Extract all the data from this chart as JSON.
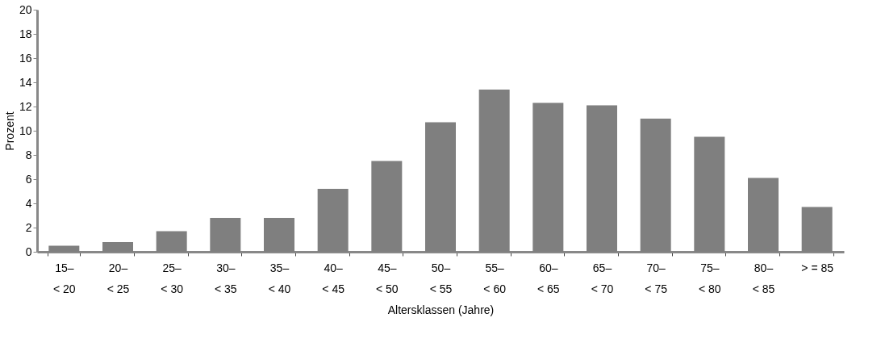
{
  "chart_data": {
    "type": "bar",
    "xlabel": "Altersklassen (Jahre)",
    "ylabel": "Prozent",
    "categories": [
      "15–\n< 20",
      "20–\n< 25",
      "25–\n< 30",
      "30–\n< 35",
      "35–\n< 40",
      "40–\n< 45",
      "45–\n< 50",
      "50–\n< 55",
      "55–\n< 60",
      "60–\n< 65",
      "65–\n< 70",
      "70–\n< 75",
      "75–\n< 80",
      "80–\n< 85",
      "> = 85"
    ],
    "values": [
      0.5,
      0.8,
      1.7,
      2.8,
      2.8,
      5.2,
      7.5,
      10.7,
      13.4,
      12.3,
      12.1,
      11.0,
      9.5,
      6.1,
      3.7
    ],
    "color": "#7f7f7f",
    "ylim": [
      0,
      20
    ],
    "yticks": [
      0,
      2,
      4,
      6,
      8,
      10,
      12,
      14,
      16,
      18,
      20
    ],
    "grid": false
  }
}
